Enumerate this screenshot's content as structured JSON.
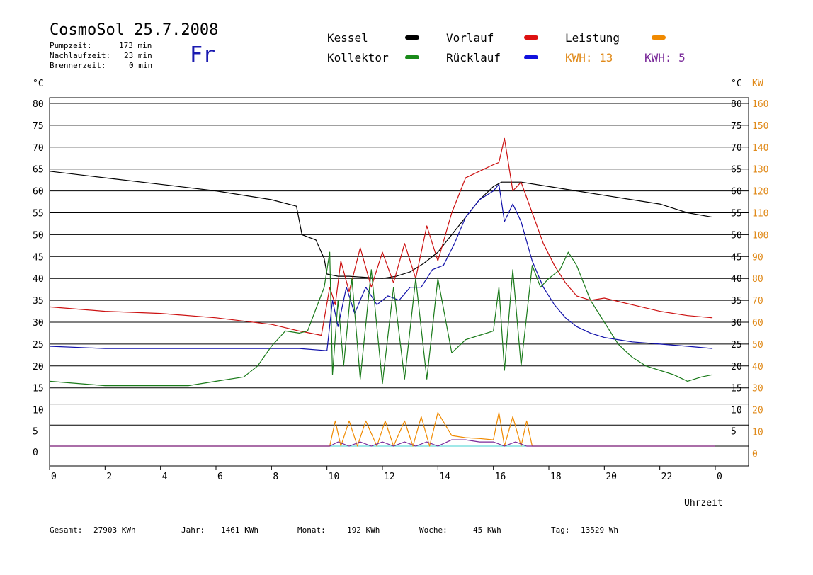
{
  "header": {
    "title": "CosmoSol 25.7.2008",
    "pump_label": "Pumpzeit:",
    "pump_value": "173 min",
    "afterrun_label": "Nachlaufzeit:",
    "afterrun_value": "23 min",
    "burner_label": "Brennerzeit:",
    "burner_value": "0 min",
    "weekday": "Fr"
  },
  "legend": {
    "kessel": "Kessel",
    "vorlauf": "Vorlauf",
    "leistung": "Leistung",
    "kollektor": "Kollektor",
    "ruecklauf": "Rücklauf",
    "kwh1": "KWH: 13",
    "kwh2": "KWH: 5"
  },
  "footer": {
    "gesamt_label": "Gesamt:",
    "gesamt_value": "27903 KWh",
    "jahr_label": "Jahr:",
    "jahr_value": "1461 KWh",
    "monat_label": "Monat:",
    "monat_value": "192 KWh",
    "woche_label": "Woche:",
    "woche_value": "45 KWh",
    "tag_label": "Tag:",
    "tag_value": "13529 Wh"
  },
  "colors": {
    "kessel": "#000000",
    "kollektor": "#1a7a1a",
    "vorlauf": "#cc1111",
    "ruecklauf": "#1111aa",
    "leistung": "#f08a00",
    "kwh2": "#7a2a9a",
    "baseline": "#40d0d0",
    "axis_orange": "#e08a1a"
  },
  "chart_data": {
    "type": "line",
    "xlabel": "Uhrzeit",
    "ylabel_left": "°C",
    "ylabel_right": "°C",
    "ylabel_right2": "KW",
    "x_ticks": [
      "0",
      "2",
      "4",
      "6",
      "8",
      "10",
      "12",
      "14",
      "16",
      "18",
      "20",
      "22",
      "0"
    ],
    "xlim": [
      0,
      24
    ],
    "ylim_temp": [
      15,
      80
    ],
    "ylim_power": [
      0,
      10
    ],
    "y_ticks_left_temp": [
      "80",
      "75",
      "70",
      "65",
      "60",
      "55",
      "50",
      "45",
      "40",
      "35",
      "30",
      "25",
      "20",
      "15"
    ],
    "y_ticks_left_power": [
      "10",
      "5",
      "0"
    ],
    "y_ticks_right_temp": [
      "80",
      "75",
      "70",
      "65",
      "60",
      "55",
      "50",
      "45",
      "40",
      "35",
      "30",
      "25",
      "20",
      "15"
    ],
    "y_ticks_right_power": [
      "10",
      "5"
    ],
    "y_ticks_right_kw": [
      "160",
      "150",
      "140",
      "130",
      "120",
      "110",
      "100",
      "90",
      "80",
      "70",
      "60",
      "50",
      "40",
      "30",
      "20",
      "10",
      "0"
    ],
    "series": [
      {
        "name": "Kessel",
        "color": "#000000",
        "x": [
          0,
          2,
          4,
          6,
          8,
          8.9,
          9.1,
          9.6,
          9.9,
          10.0,
          10.4,
          10.8,
          11.5,
          12.0,
          12.5,
          13.0,
          13.5,
          14.0,
          14.5,
          15.0,
          15.5,
          16.0,
          16.3,
          17.0,
          18.0,
          19.0,
          20.0,
          21.0,
          22.0,
          22.5,
          23.0,
          23.9
        ],
        "y": [
          64.5,
          63.0,
          61.5,
          60.0,
          58.0,
          56.5,
          50.0,
          48.8,
          44.5,
          41.0,
          40.5,
          40.5,
          40.2,
          40.0,
          40.5,
          41.5,
          43.5,
          46.0,
          50.0,
          54.0,
          58.0,
          61.0,
          62.0,
          62.0,
          61.0,
          60.0,
          59.0,
          58.0,
          57.0,
          56.0,
          55.0,
          54.0
        ]
      },
      {
        "name": "Vorlauf",
        "color": "#cc1111",
        "x": [
          0,
          2,
          4,
          6,
          8,
          9,
          9.8,
          10.1,
          10.3,
          10.5,
          10.8,
          11.2,
          11.6,
          12.0,
          12.4,
          12.8,
          13.2,
          13.6,
          14.0,
          14.5,
          15.0,
          15.5,
          16.0,
          16.2,
          16.4,
          16.7,
          17.0,
          17.4,
          17.8,
          18.2,
          18.6,
          19.0,
          19.5,
          20.0,
          21.0,
          22.0,
          23.0,
          23.9
        ],
        "y": [
          33.5,
          32.5,
          32.0,
          31.0,
          29.5,
          28.0,
          27.0,
          38.0,
          34.0,
          44.0,
          37.0,
          47.0,
          38.0,
          46.0,
          39.0,
          48.0,
          40.0,
          52.0,
          44.0,
          55.0,
          63.0,
          64.5,
          66.0,
          66.5,
          72.0,
          60.0,
          62.0,
          55.0,
          48.0,
          43.0,
          39.0,
          36.0,
          35.0,
          35.5,
          34.0,
          32.5,
          31.5,
          31.0
        ]
      },
      {
        "name": "Rücklauf",
        "color": "#1111aa",
        "x": [
          0,
          2,
          4,
          6,
          8,
          9,
          10.0,
          10.2,
          10.4,
          10.7,
          11.0,
          11.4,
          11.8,
          12.2,
          12.6,
          13.0,
          13.4,
          13.8,
          14.2,
          14.6,
          15.0,
          15.5,
          16.0,
          16.2,
          16.4,
          16.7,
          17.0,
          17.4,
          17.8,
          18.2,
          18.6,
          19.0,
          19.5,
          20.0,
          21.0,
          22.0,
          23.0,
          23.9
        ],
        "y": [
          24.5,
          24.0,
          24.0,
          24.0,
          24.0,
          24.0,
          23.5,
          35.0,
          29.0,
          38.0,
          32.0,
          38.0,
          34.0,
          36.0,
          35.0,
          38.0,
          38.0,
          42.0,
          43.0,
          48.0,
          54.0,
          58.0,
          60.0,
          61.5,
          53.0,
          57.0,
          53.0,
          44.0,
          38.0,
          34.0,
          31.0,
          29.0,
          27.5,
          26.5,
          25.5,
          25.0,
          24.5,
          24.0
        ]
      },
      {
        "name": "Kollektor",
        "color": "#1a7a1a",
        "x": [
          0,
          1,
          2,
          3,
          4,
          5,
          6,
          7,
          7.5,
          8.0,
          8.5,
          9.0,
          9.3,
          9.6,
          9.9,
          10.1,
          10.2,
          10.4,
          10.6,
          10.9,
          11.2,
          11.6,
          12.0,
          12.4,
          12.8,
          13.2,
          13.6,
          14.0,
          14.5,
          15.0,
          15.5,
          16.0,
          16.2,
          16.4,
          16.7,
          17.0,
          17.4,
          17.7,
          18.0,
          18.4,
          18.7,
          19.0,
          19.5,
          20.0,
          20.5,
          21.0,
          21.5,
          22.0,
          22.5,
          23.0,
          23.5,
          23.9
        ],
        "y": [
          16.5,
          16.0,
          15.5,
          15.5,
          15.5,
          15.5,
          16.5,
          17.5,
          20.0,
          24.5,
          28.0,
          27.5,
          28.0,
          33.0,
          38.0,
          46.0,
          18.0,
          35.0,
          20.0,
          40.0,
          17.0,
          42.0,
          16.0,
          38.0,
          17.0,
          40.0,
          17.0,
          40.0,
          23.0,
          26.0,
          27.0,
          28.0,
          38.0,
          19.0,
          42.0,
          20.0,
          43.0,
          38.0,
          40.0,
          42.0,
          46.0,
          43.0,
          35.0,
          30.0,
          25.0,
          22.0,
          20.0,
          19.0,
          18.0,
          16.5,
          17.5,
          18.0
        ]
      },
      {
        "name": "Leistung",
        "color": "#f08a00",
        "x": [
          0,
          10.1,
          10.3,
          10.5,
          10.8,
          11.1,
          11.4,
          11.8,
          12.1,
          12.4,
          12.8,
          13.1,
          13.4,
          13.7,
          14.0,
          14.5,
          15.0,
          15.5,
          16.0,
          16.2,
          16.4,
          16.7,
          17.0,
          17.2,
          17.4,
          17.6,
          24
        ],
        "y": [
          0,
          0,
          6,
          0,
          6,
          0,
          6,
          0,
          6,
          0,
          6,
          0,
          7,
          0,
          8,
          2.5,
          2.0,
          1.8,
          1.5,
          8.0,
          0,
          7.0,
          0,
          6.0,
          0,
          0,
          0
        ]
      },
      {
        "name": "KWH: 5",
        "color": "#7a2a9a",
        "x": [
          0,
          10.1,
          10.4,
          10.8,
          11.2,
          11.6,
          12.0,
          12.4,
          12.8,
          13.2,
          13.6,
          14.0,
          14.5,
          15.0,
          15.5,
          16.0,
          16.4,
          16.8,
          17.2,
          17.6,
          24
        ],
        "y": [
          0,
          0,
          1,
          0,
          1,
          0,
          1,
          0,
          1,
          0,
          1,
          0,
          1.5,
          1.5,
          1,
          1,
          0,
          1,
          0,
          0,
          0
        ]
      }
    ]
  }
}
